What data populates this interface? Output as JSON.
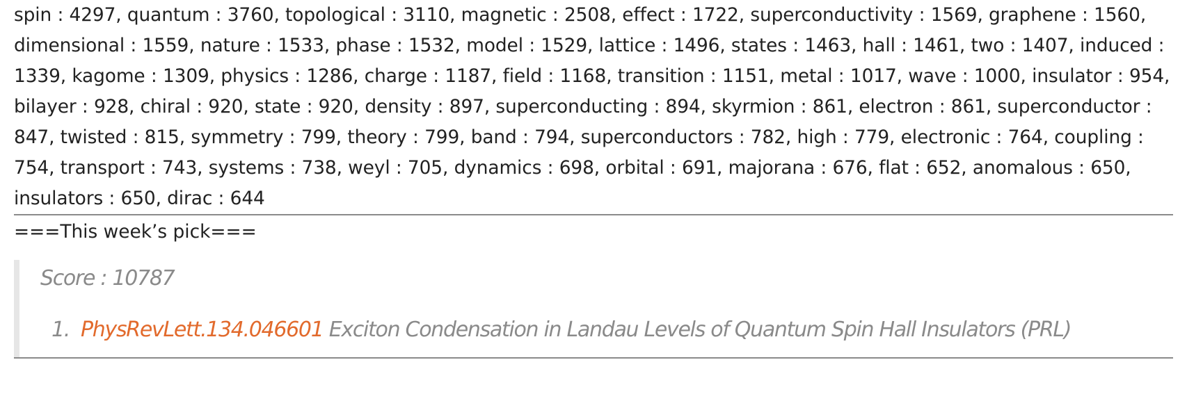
{
  "keywords": "spin : 4297, quantum : 3760, topological : 3110, magnetic : 2508, effect : 1722, superconductivity : 1569, graphene : 1560, dimensional : 1559, nature : 1533, phase : 1532, model : 1529, lattice : 1496, states : 1463, hall : 1461, two : 1407, induced : 1339, kagome : 1309, physics : 1286, charge : 1187, field : 1168, transition : 1151, metal : 1017, wave : 1000, insulator : 954, bilayer : 928, chiral : 920, state : 920, density : 897, superconducting : 894, skyrmion : 861, electron : 861, superconductor : 847, twisted : 815, symmetry : 799, theory : 799, band : 794, superconductors : 782, high : 779, electronic : 764, coupling : 754, transport : 743, systems : 738, weyl : 705, dynamics : 698, orbital : 691, majorana : 676, flat : 652, anomalous : 650, insulators : 650, dirac : 644",
  "pick": {
    "heading": "===This week’s pick===",
    "score_text": "Score : 10787",
    "items": [
      {
        "number": "1.",
        "link_text": "PhysRevLett.134.046601",
        "title": "Exciton Condensation in Landau Levels of Quantum Spin Hall Insulators (PRL)"
      }
    ]
  },
  "colors": {
    "link": "#e26a2c",
    "quote_text": "#8a8a8a",
    "quote_border": "#e6e6e6",
    "rule": "#8a8a8a"
  }
}
